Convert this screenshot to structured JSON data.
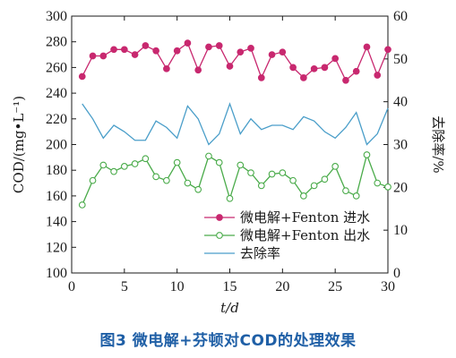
{
  "chart_data": {
    "type": "line",
    "xlabel": "t/d",
    "ylabel_left": "COD/(mg•L⁻¹)",
    "ylabel_right": "去除率/%",
    "x_ticks": [
      0,
      5,
      10,
      15,
      20,
      25,
      30
    ],
    "x_tick_labels": [
      "0",
      "5",
      "10",
      "15",
      "20",
      "25",
      "30"
    ],
    "y_left_ticks": [
      100,
      120,
      140,
      160,
      180,
      200,
      220,
      240,
      260,
      280,
      300
    ],
    "y_left_tick_labels": [
      "100",
      "120",
      "140",
      "160",
      "180",
      "200",
      "220",
      "240",
      "260",
      "280",
      "300"
    ],
    "y_right_ticks": [
      0,
      10,
      20,
      30,
      40,
      50,
      60
    ],
    "y_right_tick_labels": [
      "0",
      "10",
      "20",
      "30",
      "40",
      "50",
      "60"
    ],
    "xlim": [
      0,
      30
    ],
    "ylim_left": [
      100,
      300
    ],
    "ylim_right": [
      0,
      60
    ],
    "grid": false,
    "legend_position": "bottom-right",
    "x": [
      1,
      2,
      3,
      4,
      5,
      6,
      7,
      8,
      9,
      10,
      11,
      12,
      13,
      14,
      15,
      16,
      17,
      18,
      19,
      20,
      21,
      22,
      23,
      24,
      25,
      26,
      27,
      28,
      29,
      30
    ],
    "series": [
      {
        "name": "微电解+Fenton 进水",
        "axis": "left",
        "marker": "filled-circle",
        "color": "#c8286f",
        "values": [
          253,
          269,
          269,
          274,
          274,
          270,
          277,
          273,
          259,
          273,
          279,
          258,
          276,
          277,
          261,
          272,
          275,
          252,
          270,
          272,
          260,
          252,
          259,
          260,
          267,
          250,
          257,
          276,
          254,
          274
        ]
      },
      {
        "name": "微电解+Fenton 出水",
        "axis": "left",
        "marker": "open-circle",
        "color": "#4aab4a",
        "values": [
          153,
          172,
          184,
          179,
          183,
          185,
          189,
          175,
          172,
          186,
          170,
          165,
          191,
          186,
          158,
          184,
          178,
          168,
          177,
          178,
          172,
          160,
          168,
          173,
          183,
          164,
          160,
          192,
          170,
          167
        ]
      },
      {
        "name": "去除率",
        "axis": "right",
        "marker": "none",
        "color": "#4a9ec9",
        "values": [
          39.5,
          36.0,
          31.5,
          34.5,
          33.0,
          31.0,
          31.0,
          35.5,
          34.0,
          31.5,
          39.0,
          36.0,
          30.0,
          32.5,
          39.5,
          32.5,
          36.0,
          33.5,
          34.5,
          34.5,
          33.5,
          36.5,
          35.5,
          33.0,
          31.5,
          34.0,
          37.5,
          30.0,
          32.5,
          38.5
        ]
      }
    ]
  },
  "caption": "图3  微电解+芬顿对COD的处理效果",
  "colors": {
    "axis": "#1a1a1a",
    "caption": "#1f5fa6"
  }
}
